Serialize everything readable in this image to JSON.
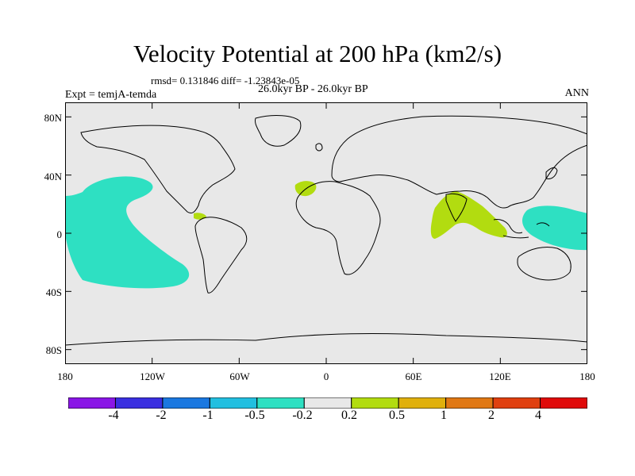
{
  "title": "Velocity Potential at 200 hPa (km2/s)",
  "stats_line": "rmsd= 0.131846 diff= -1.23843e-05",
  "experiment": "Expt = temjA-temda",
  "period": "26.0kyr BP - 26.0kyr BP",
  "season": "ANN",
  "y_ticks": [
    "80N",
    "40N",
    "0",
    "40S",
    "80S"
  ],
  "x_ticks": [
    "180",
    "120W",
    "60W",
    "0",
    "60E",
    "120E",
    "180"
  ],
  "colorbar": {
    "labels": [
      "-4",
      "-2",
      "-1",
      "-0.5",
      "-0.2",
      "0.2",
      "0.5",
      "1",
      "2",
      "4"
    ],
    "colors": [
      "#8a16e6",
      "#3a2fe0",
      "#1a78e0",
      "#22bfe0",
      "#2ee0c2",
      "#e8e8e8",
      "#b2dc10",
      "#e0b00c",
      "#e07814",
      "#e04010",
      "#e00a0a"
    ]
  },
  "map_colors": {
    "background": "#e8e8e8",
    "negative_region": "#2ee0c2",
    "positive_region": "#b2dc10"
  },
  "chart_data": {
    "type": "contour_map",
    "title": "Velocity Potential at 200 hPa (km2/s)",
    "projection": "cylindrical equidistant",
    "xlim": [
      -180,
      180
    ],
    "ylim": [
      -90,
      90
    ],
    "regions": [
      {
        "name": "central-north-pacific",
        "level": "-0.5 to -0.2",
        "lon_range": [
          -178,
          -98
        ],
        "lat_range": [
          -36,
          40
        ]
      },
      {
        "name": "east-asia-west-pacific",
        "level": "-0.5 to -0.2",
        "lon_range": [
          140,
          180
        ],
        "lat_range": [
          -10,
          20
        ]
      },
      {
        "name": "morocco",
        "level": "0.2 to 0.5",
        "lon_range": [
          -20,
          -10
        ],
        "lat_range": [
          28,
          36
        ]
      },
      {
        "name": "central-america",
        "level": "0.2 to 0.5",
        "lon_range": [
          -88,
          -80
        ],
        "lat_range": [
          12,
          16
        ]
      },
      {
        "name": "indian-ocean-south-asia",
        "level": "0.2 to 0.5",
        "lon_range": [
          74,
          122
        ],
        "lat_range": [
          -4,
          30
        ]
      }
    ]
  }
}
